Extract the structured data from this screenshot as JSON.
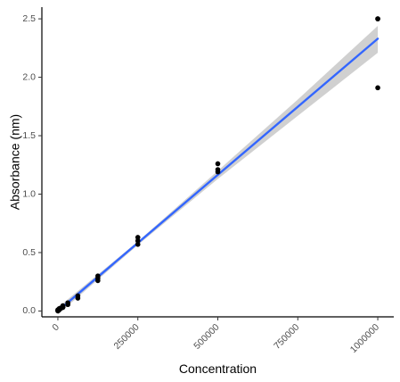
{
  "chart_data": {
    "type": "scatter",
    "xlabel": "Concentration",
    "ylabel": "Absorbance (nm)",
    "xlim": [
      -50000,
      1050000
    ],
    "ylim": [
      -0.05,
      2.6
    ],
    "x_ticks": [
      0,
      250000,
      500000,
      750000,
      1000000
    ],
    "x_tick_labels": [
      "0",
      "250000",
      "500000",
      "750000",
      "1000000"
    ],
    "y_ticks": [
      0.0,
      0.5,
      1.0,
      1.5,
      2.0,
      2.5
    ],
    "y_tick_labels": [
      "0.0",
      "0.5",
      "1.0",
      "1.5",
      "2.0",
      "2.5"
    ],
    "grid": false,
    "legend": "none",
    "points": {
      "color": "#000000",
      "x": [
        0,
        0,
        0,
        2000,
        2000,
        4000,
        4000,
        8000,
        8000,
        15600,
        15600,
        15600,
        31250,
        31250,
        62500,
        62500,
        125000,
        125000,
        125000,
        250000,
        250000,
        250000,
        500000,
        500000,
        500000,
        1000000,
        1000000,
        1000000
      ],
      "y": [
        0.0,
        0.005,
        0.01,
        0.005,
        0.01,
        0.01,
        0.02,
        0.02,
        0.025,
        0.03,
        0.035,
        0.045,
        0.055,
        0.07,
        0.11,
        0.13,
        0.26,
        0.28,
        0.3,
        0.57,
        0.6,
        0.63,
        1.19,
        1.21,
        1.26,
        1.91,
        2.5,
        2.5
      ]
    },
    "fit_line": {
      "color": "#3366FF",
      "x": [
        0,
        1000000
      ],
      "y": [
        0.0,
        2.33
      ]
    },
    "confidence_band": {
      "color": "#c8c8c8",
      "x": [
        0,
        250000,
        500000,
        750000,
        1000000
      ],
      "lower": [
        -0.03,
        0.565,
        1.13,
        1.67,
        2.21
      ],
      "upper": [
        0.03,
        0.595,
        1.2,
        1.81,
        2.44
      ]
    }
  }
}
